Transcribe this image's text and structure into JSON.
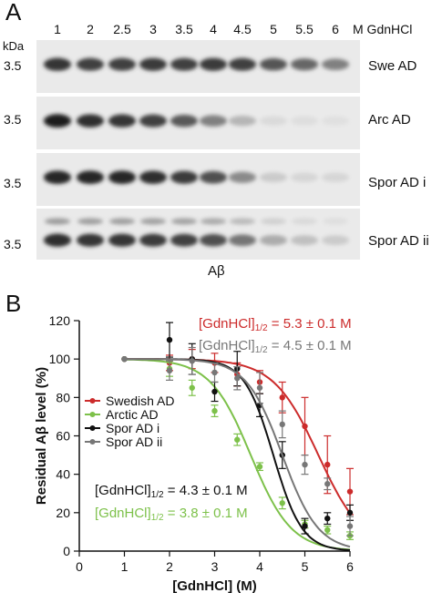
{
  "panel_a": {
    "letter": "A",
    "lanes": [
      "1",
      "2",
      "2.5",
      "3",
      "3.5",
      "4",
      "4.5",
      "5",
      "5.5",
      "6"
    ],
    "lane_unit": "M GdnHCl",
    "kda_label": "kDa",
    "mw_marker": "3.5",
    "blots": [
      {
        "name": "Swe AD",
        "intensity": [
          0.85,
          0.8,
          0.8,
          0.82,
          0.8,
          0.82,
          0.8,
          0.7,
          0.62,
          0.5
        ]
      },
      {
        "name": "Arc AD",
        "intensity": [
          0.95,
          0.88,
          0.85,
          0.8,
          0.68,
          0.5,
          0.25,
          0.08,
          0.06,
          0.05
        ]
      },
      {
        "name": "Spor AD i",
        "intensity": [
          0.92,
          0.92,
          0.92,
          0.88,
          0.82,
          0.72,
          0.45,
          0.15,
          0.1,
          0.1
        ]
      },
      {
        "name": "Spor AD ii",
        "intensity": [
          0.88,
          0.85,
          0.85,
          0.82,
          0.8,
          0.72,
          0.55,
          0.3,
          0.2,
          0.15
        ]
      }
    ],
    "antibody_label": "Aβ"
  },
  "panel_b": {
    "letter": "B",
    "annotations": {
      "swedish_prefix": "[GdnHCl]",
      "swedish_sub": "1/2",
      "swedish_value": " = 5.3 ± 0.1 M",
      "spor2_prefix": "[GdnHCl]",
      "spor2_sub": "1/2",
      "spor2_value": " = 4.5 ± 0.1 M",
      "spor1_prefix": "[GdnHCl]",
      "spor1_sub": "1/2",
      "spor1_value": " = 4.3 ± 0.1 M",
      "arctic_prefix": "[GdnHCl]",
      "arctic_sub": "1/2",
      "arctic_value": " = 3.8 ± 0.1 M"
    }
  },
  "chart_data": {
    "type": "scatter",
    "xlabel": "[GdnHCl] (M)",
    "ylabel": "Residual Aβ level (%)",
    "xlim": [
      0,
      6
    ],
    "ylim": [
      0,
      120
    ],
    "xticks": [
      "0",
      "1",
      "2",
      "3",
      "4",
      "5",
      "6"
    ],
    "yticks": [
      "0",
      "20",
      "40",
      "60",
      "80",
      "100",
      "120"
    ],
    "grid": false,
    "legend_position": "left-middle",
    "x": [
      1,
      2,
      2.5,
      3,
      3.5,
      4,
      4.5,
      5,
      5.5,
      6
    ],
    "series": [
      {
        "name": "Swedish AD",
        "color": "#cc2b2b",
        "midpoint": 5.3,
        "slope": 0.5,
        "values": [
          100,
          98,
          100,
          98,
          92,
          88,
          80,
          65,
          45,
          31
        ],
        "errors": [
          0,
          4,
          5,
          5,
          6,
          6,
          8,
          15,
          15,
          12
        ]
      },
      {
        "name": "Arctic AD",
        "color": "#7dc14a",
        "midpoint": 3.8,
        "slope": 0.45,
        "values": [
          100,
          95,
          85,
          73,
          58,
          44,
          25,
          14,
          11,
          8
        ],
        "errors": [
          0,
          4,
          4,
          3,
          3,
          2,
          3,
          2,
          2,
          2
        ]
      },
      {
        "name": "Spor AD i",
        "color": "#111111",
        "midpoint": 4.3,
        "slope": 0.32,
        "values": [
          100,
          110,
          100,
          83,
          95,
          76,
          50,
          13,
          17,
          20
        ],
        "errors": [
          0,
          9,
          8,
          5,
          9,
          6,
          7,
          4,
          3,
          4
        ]
      },
      {
        "name": "Spor AD ii",
        "color": "#777777",
        "midpoint": 4.5,
        "slope": 0.4,
        "values": [
          100,
          94,
          99,
          93,
          90,
          85,
          66,
          45,
          35,
          13
        ],
        "errors": [
          0,
          5,
          7,
          5,
          6,
          8,
          7,
          5,
          3,
          5
        ]
      }
    ]
  }
}
